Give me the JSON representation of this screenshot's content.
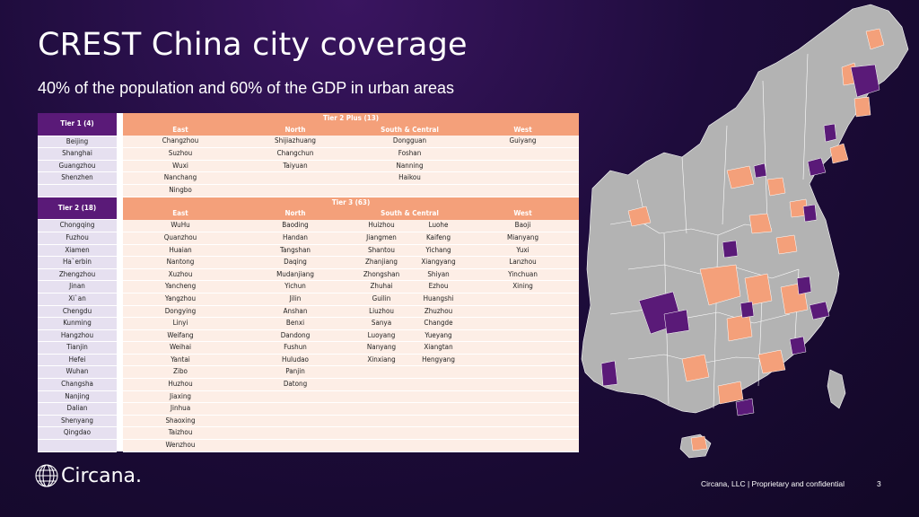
{
  "title": "CREST China city coverage",
  "subtitle": "40% of the population and 60% of the GDP in urban areas",
  "tier1": {
    "label": "Tier 1 (4)",
    "cities": [
      "Beijing",
      "Shanghai",
      "Guangzhou",
      "Shenzhen"
    ]
  },
  "tier2plus": {
    "label": "Tier 2 Plus (13)",
    "regions": [
      "East",
      "North",
      "South & Central",
      "West"
    ],
    "rows": [
      [
        "Changzhou",
        "Shijiazhuang",
        "Dongguan",
        "Guiyang"
      ],
      [
        "Suzhou",
        "Changchun",
        "Foshan",
        ""
      ],
      [
        "Wuxi",
        "Taiyuan",
        "Nanning",
        ""
      ],
      [
        "Nanchang",
        "",
        "Haikou",
        ""
      ],
      [
        "Ningbo",
        "",
        "",
        ""
      ]
    ]
  },
  "tier2": {
    "label": "Tier 2 (18)",
    "cities": [
      "Chongqing",
      "Fuzhou",
      "Xiamen",
      "Ha`erbin",
      "Zhengzhou",
      "Jinan",
      "Xi`an",
      "Chengdu",
      "Kunming",
      "Hangzhou",
      "Tianjin",
      "Hefei",
      "Wuhan",
      "Changsha",
      "Nanjing",
      "Dalian",
      "Shenyang",
      "Qingdao"
    ]
  },
  "tier3": {
    "label": "Tier 3 (63)",
    "regions": [
      "East",
      "North",
      "South & Central",
      "West"
    ],
    "rows": [
      [
        "WuHu",
        "Baoding",
        "Huizhou",
        "Luohe",
        "Baoji"
      ],
      [
        "Quanzhou",
        "Handan",
        "Jiangmen",
        "Kaifeng",
        "Mianyang"
      ],
      [
        "Huaian",
        "Tangshan",
        "Shantou",
        "Yichang",
        "Yuxi"
      ],
      [
        "Nantong",
        "Daqing",
        "Zhanjiang",
        "Xiangyang",
        "Lanzhou"
      ],
      [
        "Xuzhou",
        "Mudanjiang",
        "Zhongshan",
        "Shiyan",
        "Yinchuan"
      ],
      [
        "Yancheng",
        "Yichun",
        "Zhuhai",
        "Ezhou",
        "Xining"
      ],
      [
        "Yangzhou",
        "Jilin",
        "Guilin",
        "Huangshi",
        ""
      ],
      [
        "Dongying",
        "Anshan",
        "Liuzhou",
        "Zhuzhou",
        ""
      ],
      [
        "Linyi",
        "Benxi",
        "Sanya",
        "Changde",
        ""
      ],
      [
        "Weifang",
        "Dandong",
        "Luoyang",
        "Yueyang",
        ""
      ],
      [
        "Weihai",
        "Fushun",
        "Nanyang",
        "Xiangtan",
        ""
      ],
      [
        "Yantai",
        "Huludao",
        "Xinxiang",
        "Hengyang",
        ""
      ],
      [
        "Zibo",
        "Panjin",
        "",
        "",
        ""
      ],
      [
        "Huzhou",
        "Datong",
        "",
        "",
        ""
      ],
      [
        "Jiaxing",
        "",
        "",
        "",
        ""
      ],
      [
        "Jinhua",
        "",
        "",
        "",
        ""
      ],
      [
        "Shaoxing",
        "",
        "",
        "",
        ""
      ],
      [
        "Taizhou",
        "",
        "",
        "",
        ""
      ],
      [
        "Wenzhou",
        "",
        "",
        "",
        ""
      ]
    ]
  },
  "logo": {
    "text": "Circana."
  },
  "footer": {
    "text": "Circana, LLC  |  Proprietary and confidential",
    "page": "3"
  },
  "colors": {
    "tier1_2": "#5a1a78",
    "tier2plus_3": "#f4a07a",
    "other": "#b3b3b3",
    "background": "#1e0c3c"
  }
}
